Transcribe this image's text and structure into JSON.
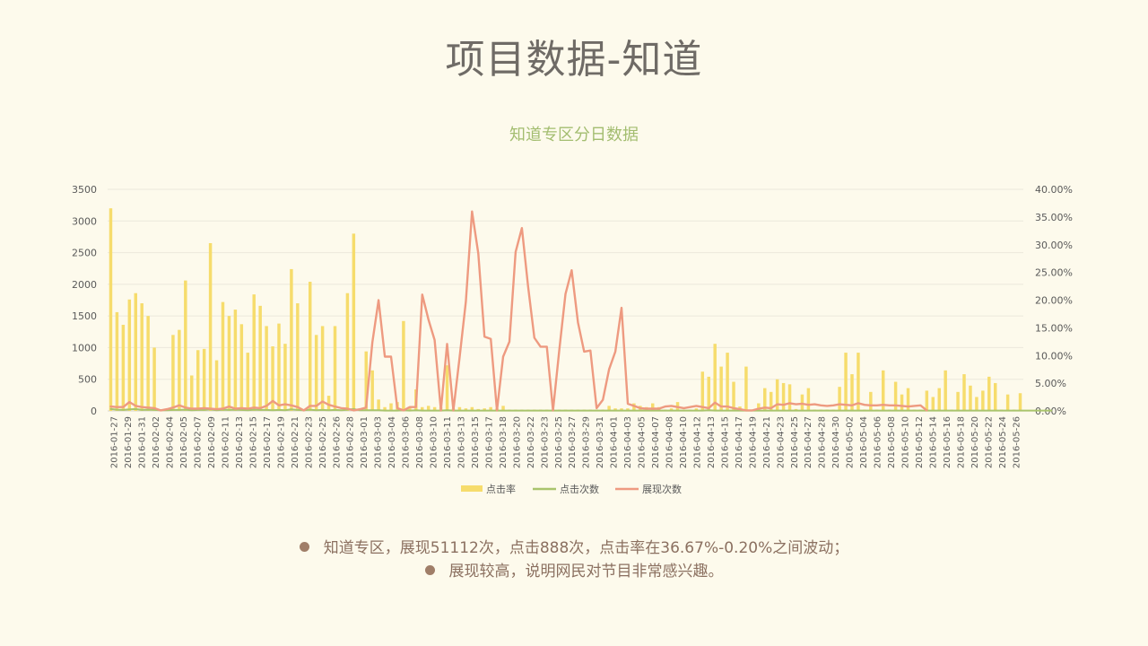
{
  "title": "项目数据-知道",
  "notes": [
    "知道专区，展现51112次，点击888次，点击率在36.67%-0.20%之间波动；",
    "展现较高，说明网民对节目非常感兴趣。"
  ],
  "chart_data": {
    "type": "bar",
    "title": "知道专区分日数据",
    "start_date": "2016-01-27",
    "x_labels": [
      "2016-01-27",
      "2016-01-29",
      "2016-01-31",
      "2016-02-02",
      "2016-02-04",
      "2016-02-05",
      "2016-02-07",
      "2016-02-09",
      "2016-02-11",
      "2016-02-13",
      "2016-02-15",
      "2016-02-17",
      "2016-02-19",
      "2016-02-21",
      "2016-02-23",
      "2016-02-25",
      "2016-02-26",
      "2016-02-28",
      "2016-03-01",
      "2016-03-03",
      "2016-03-04",
      "2016-03-06",
      "2016-03-08",
      "2016-03-10",
      "2016-03-11",
      "2016-03-13",
      "2016-03-15",
      "2016-03-17",
      "2016-03-18",
      "2016-03-20",
      "2016-03-22",
      "2016-03-23",
      "2016-03-25",
      "2016-03-27",
      "2016-03-29",
      "2016-03-31",
      "2016-04-01",
      "2016-04-03",
      "2016-04-05",
      "2016-04-07",
      "2016-04-08",
      "2016-04-10",
      "2016-04-12",
      "2016-04-13",
      "2016-04-15",
      "2016-04-17",
      "2016-04-19",
      "2016-04-21",
      "2016-04-23",
      "2016-04-25",
      "2016-04-27",
      "2016-04-28",
      "2016-04-30",
      "2016-05-02",
      "2016-05-04",
      "2016-05-06",
      "2016-05-08",
      "2016-05-10",
      "2016-05-12",
      "2016-05-14",
      "2016-05-16",
      "2016-05-18",
      "2016-05-20",
      "2016-05-22",
      "2016-05-24",
      "2016-05-26"
    ],
    "y_left": {
      "min": 0,
      "max": 3500,
      "ticks": [
        "0",
        "500",
        "1000",
        "1500",
        "2000",
        "2500",
        "3000",
        "3500"
      ]
    },
    "y_right": {
      "min": 0,
      "max": 0.4,
      "ticks": [
        "0.00%",
        "5.00%",
        "10.00%",
        "15.00%",
        "20.00%",
        "25.00%",
        "30.00%",
        "35.00%",
        "40.00%"
      ]
    },
    "series": [
      {
        "name": "点击率",
        "type": "bar",
        "axis": "left",
        "color": "#f6dc6c",
        "values": [
          3200,
          1560,
          1360,
          1760,
          1860,
          1700,
          1500,
          1000,
          20,
          20,
          1200,
          1280,
          2060,
          560,
          960,
          980,
          2650,
          800,
          1720,
          1500,
          1600,
          1370,
          920,
          1840,
          1660,
          1340,
          1020,
          1380,
          1060,
          2240,
          1700,
          20,
          2040,
          1200,
          1340,
          240,
          1340,
          20,
          1860,
          2800,
          20,
          940,
          640,
          180,
          60,
          120,
          140,
          1420,
          50,
          340,
          60,
          80,
          60,
          60,
          720,
          40,
          60,
          40,
          60,
          30,
          40,
          60,
          40,
          80,
          20,
          20,
          20,
          20,
          20,
          20,
          20,
          20,
          20,
          20,
          20,
          20,
          20,
          20,
          20,
          20,
          80,
          40,
          40,
          40,
          120,
          80,
          60,
          120,
          60,
          20,
          40,
          140,
          20,
          20,
          40,
          620,
          540,
          1060,
          700,
          920,
          460,
          70,
          700,
          20,
          120,
          360,
          300,
          500,
          440,
          420,
          30,
          260,
          360,
          20,
          20,
          20,
          20,
          380,
          920,
          580,
          920,
          20,
          300,
          20,
          640,
          20,
          460,
          260,
          360,
          20,
          20,
          320,
          220,
          360,
          640,
          20,
          300,
          580,
          400,
          220,
          320,
          540,
          440,
          20,
          260,
          20,
          280
        ]
      },
      {
        "name": "点击次数",
        "type": "line",
        "axis": "left",
        "color": "#a9c46c",
        "values": [
          30,
          20,
          15,
          25,
          30,
          15,
          20,
          15,
          10,
          10,
          15,
          15,
          20,
          10,
          15,
          15,
          25,
          10,
          20,
          15,
          20,
          15,
          10,
          20,
          15,
          15,
          10,
          15,
          10,
          25,
          15,
          10,
          20,
          10,
          15,
          10,
          15,
          10,
          20,
          30,
          10,
          10,
          10,
          10,
          5,
          5,
          5,
          10,
          5,
          10,
          5,
          5,
          5,
          5,
          10,
          5,
          5,
          5,
          5,
          5,
          5,
          5,
          5,
          5,
          5,
          5,
          5,
          5,
          5,
          5,
          5,
          5,
          5,
          5,
          5,
          5,
          5,
          5,
          5,
          5,
          5,
          5,
          5,
          5,
          5,
          5,
          5,
          5,
          5,
          5,
          5,
          5,
          5,
          5,
          5,
          5,
          10,
          5,
          5,
          5,
          5,
          5,
          5,
          5,
          5,
          5,
          5,
          5,
          5,
          5,
          5,
          5,
          5,
          5,
          5,
          5,
          5,
          5,
          5,
          5,
          5,
          5,
          5,
          5,
          5,
          5,
          5,
          5,
          5,
          5,
          5,
          5,
          5,
          5,
          5,
          5,
          5,
          5,
          5,
          5,
          5,
          5,
          5,
          5,
          5,
          5,
          5,
          5,
          5,
          5,
          5,
          5
        ]
      },
      {
        "name": "展现次数",
        "type": "line",
        "axis": "right",
        "color": "#ee9a80",
        "values": [
          0.008,
          0.007,
          0.007,
          0.016,
          0.009,
          0.007,
          0.006,
          0.005,
          0.001,
          0.003,
          0.006,
          0.01,
          0.006,
          0.004,
          0.004,
          0.005,
          0.004,
          0.003,
          0.004,
          0.008,
          0.004,
          0.005,
          0.004,
          0.006,
          0.005,
          0.009,
          0.018,
          0.01,
          0.012,
          0.01,
          0.007,
          0.001,
          0.009,
          0.009,
          0.017,
          0.011,
          0.008,
          0.005,
          0.004,
          0.001,
          0.003,
          0.006,
          0.124,
          0.2,
          0.098,
          0.098,
          0.005,
          0.001,
          0.007,
          0.007,
          0.21,
          0.165,
          0.128,
          0.001,
          0.121,
          0.001,
          0.096,
          0.197,
          0.36,
          0.284,
          0.134,
          0.13,
          0.001,
          0.098,
          0.125,
          0.287,
          0.33,
          0.225,
          0.132,
          0.116,
          0.116,
          0.001,
          0.11,
          0.211,
          0.254,
          0.16,
          0.107,
          0.109,
          0.005,
          0.02,
          0.075,
          0.107,
          0.186,
          0.013,
          0.009,
          0.005,
          0.004,
          0.004,
          0.004,
          0.008,
          0.009,
          0.007,
          0.005,
          0.007,
          0.009,
          0.007,
          0.005,
          0.015,
          0.008,
          0.008,
          0.005,
          0.003,
          0.001,
          0.001,
          0.004,
          0.006,
          0.005,
          0.012,
          0.011,
          0.014,
          0.012,
          0.013,
          0.011,
          0.012,
          0.01,
          0.009,
          0.01,
          0.012,
          0.011,
          0.01,
          0.014,
          0.011,
          0.01,
          0.01,
          0.011,
          0.01,
          0.01,
          0.009,
          0.008,
          0.009,
          0.01,
          0.001
        ]
      }
    ],
    "legend_position": "bottom",
    "grid": true
  }
}
